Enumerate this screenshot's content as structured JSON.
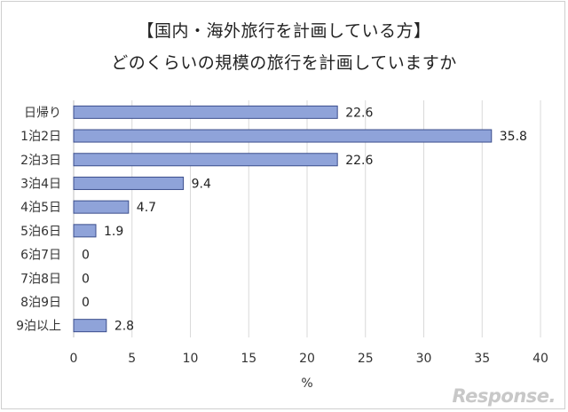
{
  "chart_data": {
    "type": "bar",
    "orientation": "horizontal",
    "title_line1": "【国内・海外旅行を計画している方】",
    "title_line2": "どのくらいの規模の旅行を計画していますか",
    "categories": [
      "日帰り",
      "1泊2日",
      "2泊3日",
      "3泊4日",
      "4泊5日",
      "5泊6日",
      "6泊7日",
      "7泊8日",
      "8泊9日",
      "9泊以上"
    ],
    "values": [
      22.6,
      35.8,
      22.6,
      9.4,
      4.7,
      1.9,
      0,
      0,
      0,
      2.8
    ],
    "value_labels": [
      "22.6",
      "35.8",
      "22.6",
      "9.4",
      "4.7",
      "1.9",
      "0",
      "0",
      "0",
      "2.8"
    ],
    "xlabel": "%",
    "xlim": [
      0,
      40
    ],
    "xticks": [
      0,
      5,
      10,
      15,
      20,
      25,
      30,
      35,
      40
    ],
    "grid": true,
    "bar_fill": "#8fa3d9",
    "bar_stroke": "#3b4e8c",
    "grid_color": "#d9d9d9"
  },
  "watermark": "Response."
}
